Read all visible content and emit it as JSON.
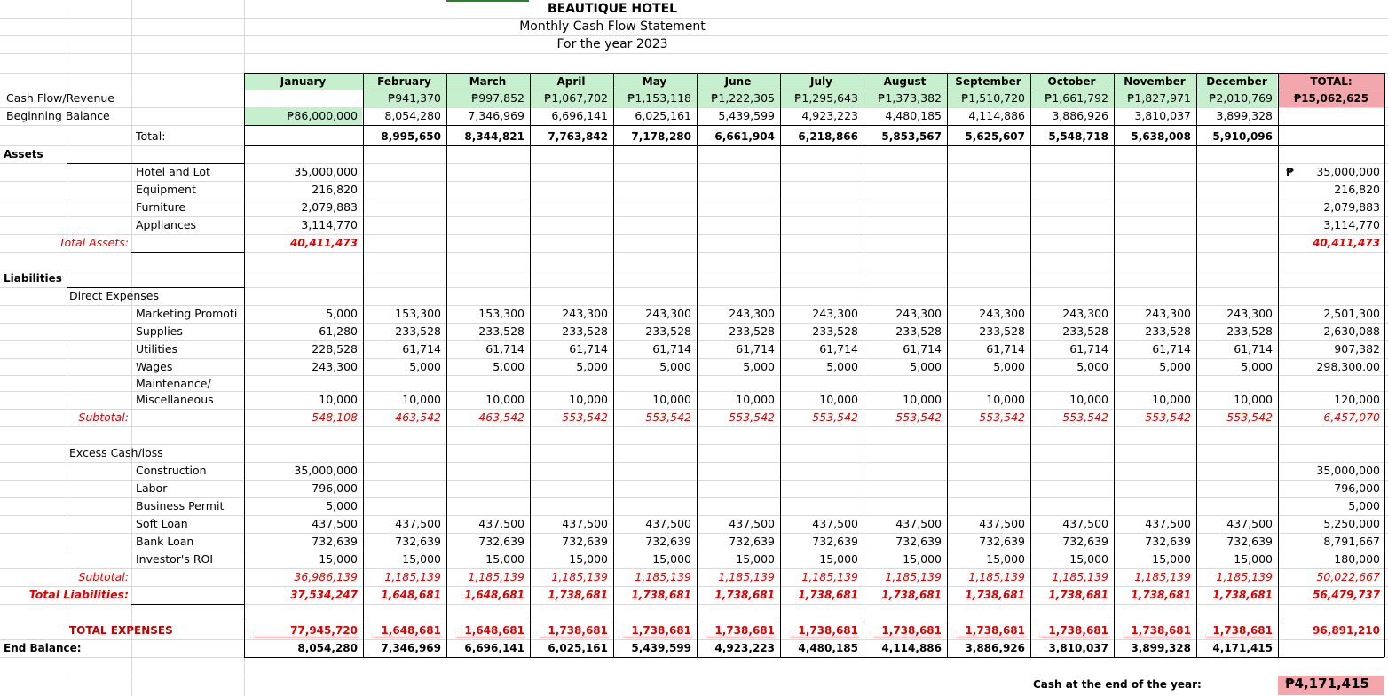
{
  "header": {
    "company": "BEAUTIQUE HOTEL",
    "subtitle": "Monthly Cash Flow Statement",
    "period": "For the year 2023"
  },
  "colors": {
    "green_fill": "#c6efce",
    "pink_fill": "#f4a6ad",
    "negative_text": "#e00000"
  },
  "months": [
    "January",
    "February",
    "March",
    "April",
    "May",
    "June",
    "July",
    "August",
    "September",
    "October",
    "November",
    "December"
  ],
  "total_header": "TOTAL:",
  "labels": {
    "cash_flow_revenue": "Cash Flow/Revenue",
    "beginning_balance": "Beginning Balance",
    "total": "Total:",
    "assets": "Assets",
    "hotel_and_lot": "Hotel and Lot",
    "equipment": "Equipment",
    "furniture": "Furniture",
    "appliances": "Appliances",
    "total_assets": "Total Assets:",
    "liabilities": "Liabilities",
    "direct_expenses": "Direct Expenses",
    "marketing": "Marketing Promoti",
    "supplies": "Supplies",
    "utilities": "Utilities",
    "wages": "Wages",
    "maintenance1": "Maintenance/",
    "maintenance2": "Miscellaneous",
    "subtotal1": "Subtotal:",
    "excess": "Excess Cash/loss",
    "construction": "Construction",
    "labor": "Labor",
    "business_permit": "Business Permit",
    "soft_loan": "Soft Loan",
    "bank_loan": "Bank Loan",
    "investor_roi": "Investor's ROI",
    "subtotal2": "Subtotal:",
    "total_liabilities": "Total Liabilities:",
    "total_expenses": "TOTAL EXPENSES",
    "end_balance": "End Balance:",
    "cash_end_label": "Cash at the end of the year:",
    "cash_end_value": "₱4,171,415",
    "peso_sign": "₱"
  },
  "rows": {
    "revenue": [
      "",
      "₱941,370",
      "₱997,852",
      "₱1,067,702",
      "₱1,153,118",
      "₱1,222,305",
      "₱1,295,643",
      "₱1,373,382",
      "₱1,510,720",
      "₱1,661,792",
      "₱1,827,971",
      "₱2,010,769",
      "₱15,062,625"
    ],
    "beginning": [
      "₱86,000,000",
      "8,054,280",
      "7,346,969",
      "6,696,141",
      "6,025,161",
      "5,439,599",
      "4,923,223",
      "4,480,185",
      "4,114,886",
      "3,886,926",
      "3,810,037",
      "3,899,328",
      ""
    ],
    "total": [
      "",
      "8,995,650",
      "8,344,821",
      "7,763,842",
      "7,178,280",
      "6,661,904",
      "6,218,866",
      "5,853,567",
      "5,625,607",
      "5,548,718",
      "5,638,008",
      "5,910,096",
      ""
    ],
    "hotel": [
      "35,000,000",
      "",
      "",
      "",
      "",
      "",
      "",
      "",
      "",
      "",
      "",
      "",
      "35,000,000"
    ],
    "equipment": [
      "216,820",
      "",
      "",
      "",
      "",
      "",
      "",
      "",
      "",
      "",
      "",
      "",
      "216,820"
    ],
    "furniture": [
      "2,079,883",
      "",
      "",
      "",
      "",
      "",
      "",
      "",
      "",
      "",
      "",
      "",
      "2,079,883"
    ],
    "appliances": [
      "3,114,770",
      "",
      "",
      "",
      "",
      "",
      "",
      "",
      "",
      "",
      "",
      "",
      "3,114,770"
    ],
    "total_assets": [
      "40,411,473",
      "",
      "",
      "",
      "",
      "",
      "",
      "",
      "",
      "",
      "",
      "",
      "40,411,473"
    ],
    "marketing": [
      "5,000",
      "153,300",
      "153,300",
      "243,300",
      "243,300",
      "243,300",
      "243,300",
      "243,300",
      "243,300",
      "243,300",
      "243,300",
      "243,300",
      "2,501,300"
    ],
    "supplies": [
      "61,280",
      "233,528",
      "233,528",
      "233,528",
      "233,528",
      "233,528",
      "233,528",
      "233,528",
      "233,528",
      "233,528",
      "233,528",
      "233,528",
      "2,630,088"
    ],
    "utilities": [
      "228,528",
      "61,714",
      "61,714",
      "61,714",
      "61,714",
      "61,714",
      "61,714",
      "61,714",
      "61,714",
      "61,714",
      "61,714",
      "61,714",
      "907,382"
    ],
    "wages": [
      "243,300",
      "5,000",
      "5,000",
      "5,000",
      "5,000",
      "5,000",
      "5,000",
      "5,000",
      "5,000",
      "5,000",
      "5,000",
      "5,000",
      "298,300.00"
    ],
    "maintenance": [
      "10,000",
      "10,000",
      "10,000",
      "10,000",
      "10,000",
      "10,000",
      "10,000",
      "10,000",
      "10,000",
      "10,000",
      "10,000",
      "10,000",
      "120,000"
    ],
    "subtotal1": [
      "548,108",
      "463,542",
      "463,542",
      "553,542",
      "553,542",
      "553,542",
      "553,542",
      "553,542",
      "553,542",
      "553,542",
      "553,542",
      "553,542",
      "6,457,070"
    ],
    "construction": [
      "35,000,000",
      "",
      "",
      "",
      "",
      "",
      "",
      "",
      "",
      "",
      "",
      "",
      "35,000,000"
    ],
    "labor": [
      "796,000",
      "",
      "",
      "",
      "",
      "",
      "",
      "",
      "",
      "",
      "",
      "",
      "796,000"
    ],
    "permit": [
      "5,000",
      "",
      "",
      "",
      "",
      "",
      "",
      "",
      "",
      "",
      "",
      "",
      "5,000"
    ],
    "soft_loan": [
      "437,500",
      "437,500",
      "437,500",
      "437,500",
      "437,500",
      "437,500",
      "437,500",
      "437,500",
      "437,500",
      "437,500",
      "437,500",
      "437,500",
      "5,250,000"
    ],
    "bank_loan": [
      "732,639",
      "732,639",
      "732,639",
      "732,639",
      "732,639",
      "732,639",
      "732,639",
      "732,639",
      "732,639",
      "732,639",
      "732,639",
      "732,639",
      "8,791,667"
    ],
    "investor": [
      "15,000",
      "15,000",
      "15,000",
      "15,000",
      "15,000",
      "15,000",
      "15,000",
      "15,000",
      "15,000",
      "15,000",
      "15,000",
      "15,000",
      "180,000"
    ],
    "subtotal2": [
      "36,986,139",
      "1,185,139",
      "1,185,139",
      "1,185,139",
      "1,185,139",
      "1,185,139",
      "1,185,139",
      "1,185,139",
      "1,185,139",
      "1,185,139",
      "1,185,139",
      "1,185,139",
      "50,022,667"
    ],
    "total_liabilities": [
      "37,534,247",
      "1,648,681",
      "1,648,681",
      "1,738,681",
      "1,738,681",
      "1,738,681",
      "1,738,681",
      "1,738,681",
      "1,738,681",
      "1,738,681",
      "1,738,681",
      "1,738,681",
      "56,479,737"
    ],
    "total_expenses": [
      "77,945,720",
      "1,648,681",
      "1,648,681",
      "1,738,681",
      "1,738,681",
      "1,738,681",
      "1,738,681",
      "1,738,681",
      "1,738,681",
      "1,738,681",
      "1,738,681",
      "1,738,681",
      "96,891,210"
    ],
    "end_balance": [
      "8,054,280",
      "7,346,969",
      "6,696,141",
      "6,025,161",
      "5,439,599",
      "4,923,223",
      "4,480,185",
      "4,114,886",
      "3,886,926",
      "3,810,037",
      "3,899,328",
      "4,171,415",
      ""
    ]
  }
}
